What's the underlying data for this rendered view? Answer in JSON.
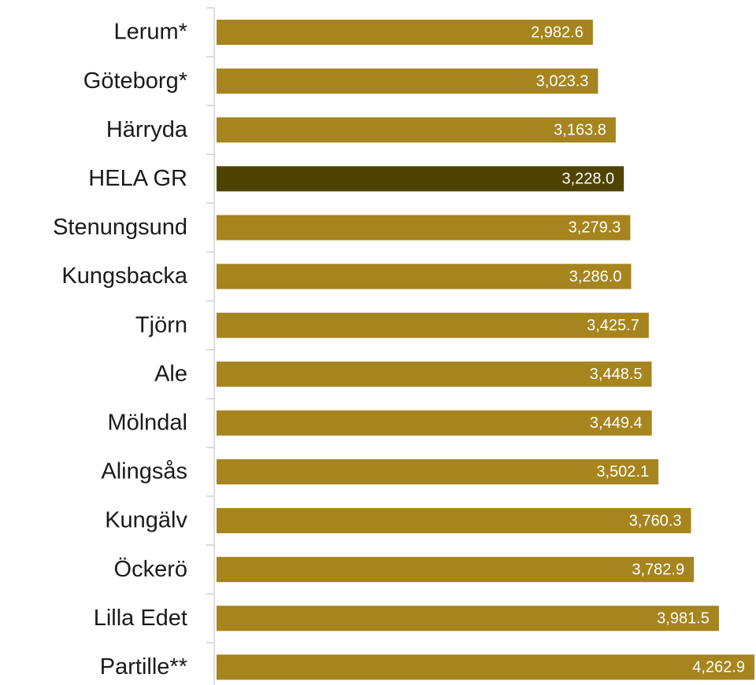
{
  "chart_data": {
    "type": "barh",
    "categories": [
      "Lerum*",
      "Göteborg*",
      "Härryda",
      "HELA GR",
      "Stenungsund",
      "Kungsbacka",
      "Tjörn",
      "Ale",
      "Mölndal",
      "Alingsås",
      "Kungälv",
      "Öckerö",
      "Lilla Edet",
      "Partille**"
    ],
    "values": [
      2982.6,
      3023.3,
      3163.8,
      3228.0,
      3279.3,
      3286.0,
      3425.7,
      3448.5,
      3449.4,
      3502.1,
      3760.3,
      3782.9,
      3981.5,
      4262.9
    ],
    "value_labels": [
      "2,982.6",
      "3,023.3",
      "3,163.8",
      "3,228.0",
      "3,279.3",
      "3,286.0",
      "3,425.7",
      "3,448.5",
      "3,449.4",
      "3,502.1",
      "3,760.3",
      "3,782.9",
      "3,981.5",
      "4,262.9"
    ],
    "colors": [
      "#a6841e",
      "#a6841e",
      "#a6841e",
      "#4f4300",
      "#a6841e",
      "#a6841e",
      "#a6841e",
      "#a6841e",
      "#a6841e",
      "#a6841e",
      "#a6841e",
      "#a6841e",
      "#a6841e",
      "#a6841e"
    ]
  }
}
